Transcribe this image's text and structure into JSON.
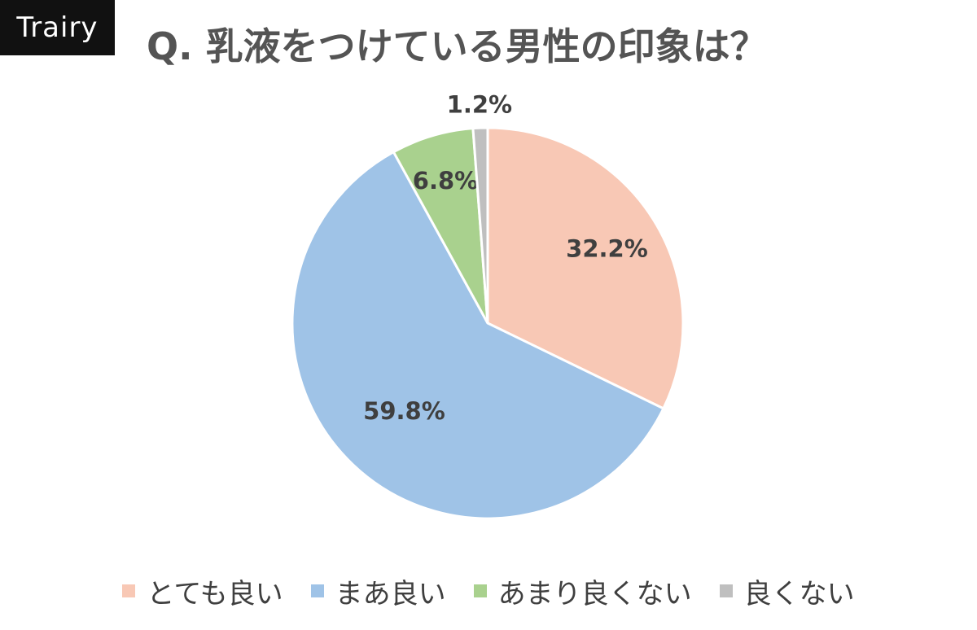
{
  "brand": "Trairy",
  "title": "Q. 乳液をつけている男性の印象は？",
  "chart_data": {
    "type": "pie",
    "title": "Q. 乳液をつけている男性の印象は？",
    "start_angle_deg": 0,
    "direction": "clockwise",
    "slices": [
      {
        "label": "とても良い",
        "value": 32.2,
        "display": "32.2%",
        "color": "#F8C8B5"
      },
      {
        "label": "まあ良い",
        "value": 59.8,
        "display": "59.8%",
        "color": "#9FC3E7"
      },
      {
        "label": "あまり良くない",
        "value": 6.8,
        "display": "6.8%",
        "color": "#A9D18E"
      },
      {
        "label": "良くない",
        "value": 1.2,
        "display": "1.2%",
        "color": "#BFBFBF"
      }
    ],
    "legend_position": "bottom"
  }
}
